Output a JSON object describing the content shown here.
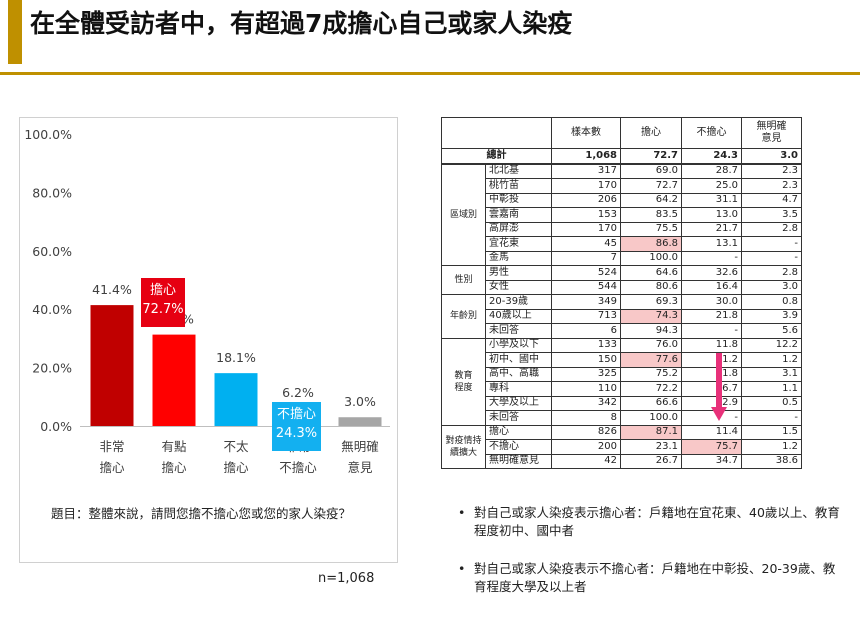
{
  "page": {
    "title": "在全體受訪者中，有超過7成擔心自己或家人染疫"
  },
  "chart_data": {
    "type": "bar",
    "categories": [
      "非常\n擔心",
      "有點\n擔心",
      "不太\n擔心",
      "非常\n不擔心",
      "無明確\n意見"
    ],
    "category_lines": [
      [
        "非常",
        "擔心"
      ],
      [
        "有點",
        "擔心"
      ],
      [
        "不太",
        "擔心"
      ],
      [
        "非常",
        "不擔心"
      ],
      [
        "無明確",
        "意見"
      ]
    ],
    "values": [
      41.4,
      31.3,
      18.1,
      6.2,
      3.0
    ],
    "value_labels": [
      "41.4%",
      "31.3%",
      "18.1%",
      "6.2%",
      "3.0%"
    ],
    "colors": [
      "#c00000",
      "#ff0000",
      "#00b0f0",
      "#0070c0",
      "#a6a6a6"
    ],
    "ylim": [
      0,
      100
    ],
    "yticks": [
      "0.0%",
      "20.0%",
      "40.0%",
      "60.0%",
      "80.0%",
      "100.0%"
    ],
    "ytick_values": [
      0,
      20,
      40,
      60,
      80,
      100
    ],
    "grid": false,
    "callouts": [
      {
        "label": "擔心",
        "value": "72.7%",
        "color": "#e60012"
      },
      {
        "label": "不擔心",
        "value": "24.3%",
        "color": "#13b0f0"
      }
    ],
    "question": "題目：整體來說，請問您擔不擔心您或您的家人染疫？",
    "n": "n=1,068"
  },
  "table": {
    "headers": [
      "樣本數",
      "擔心",
      "不擔心",
      "無明確\n意見"
    ],
    "header_lines": [
      [
        "樣本數"
      ],
      [
        "擔心"
      ],
      [
        "不擔心"
      ],
      [
        "無明確",
        "意見"
      ]
    ],
    "total": {
      "label": "總計",
      "values": [
        "1,068",
        "72.7",
        "24.3",
        "3.0"
      ]
    },
    "groups": [
      {
        "name": "區域別",
        "rows": [
          {
            "label": "北北基",
            "values": [
              "317",
              "69.0",
              "28.7",
              "2.3"
            ]
          },
          {
            "label": "桃竹苗",
            "values": [
              "170",
              "72.7",
              "25.0",
              "2.3"
            ]
          },
          {
            "label": "中彰投",
            "values": [
              "206",
              "64.2",
              "31.1",
              "4.7"
            ]
          },
          {
            "label": "雲嘉南",
            "values": [
              "153",
              "83.5",
              "13.0",
              "3.5"
            ]
          },
          {
            "label": "高屏澎",
            "values": [
              "170",
              "75.5",
              "21.7",
              "2.8"
            ]
          },
          {
            "label": "宜花東",
            "values": [
              "45",
              "86.8",
              "13.1",
              "-"
            ],
            "hl": [
              1
            ]
          },
          {
            "label": "金馬",
            "values": [
              "7",
              "100.0",
              "-",
              "-"
            ]
          }
        ]
      },
      {
        "name": "性別",
        "rows": [
          {
            "label": "男性",
            "values": [
              "524",
              "64.6",
              "32.6",
              "2.8"
            ]
          },
          {
            "label": "女性",
            "values": [
              "544",
              "80.6",
              "16.4",
              "3.0"
            ]
          }
        ]
      },
      {
        "name": "年齡別",
        "rows": [
          {
            "label": "20-39歲",
            "values": [
              "349",
              "69.3",
              "30.0",
              "0.8"
            ]
          },
          {
            "label": "40歲以上",
            "values": [
              "713",
              "74.3",
              "21.8",
              "3.9"
            ],
            "hl": [
              1
            ]
          },
          {
            "label": "未回答",
            "values": [
              "6",
              "94.3",
              "-",
              "5.6"
            ]
          }
        ]
      },
      {
        "name": "教育\n程度",
        "rows": [
          {
            "label": "小學及以下",
            "values": [
              "133",
              "76.0",
              "11.8",
              "12.2"
            ]
          },
          {
            "label": "初中、國中",
            "values": [
              "150",
              "77.6",
              "21.2",
              "1.2"
            ],
            "hl": [
              1
            ]
          },
          {
            "label": "高中、高職",
            "values": [
              "325",
              "75.2",
              "21.8",
              "3.1"
            ]
          },
          {
            "label": "專科",
            "values": [
              "110",
              "72.2",
              "26.7",
              "1.1"
            ]
          },
          {
            "label": "大學及以上",
            "values": [
              "342",
              "66.6",
              "32.9",
              "0.5"
            ]
          },
          {
            "label": "未回答",
            "values": [
              "8",
              "100.0",
              "-",
              "-"
            ]
          }
        ]
      },
      {
        "name": "對疫情持\n續擴大",
        "rows": [
          {
            "label": "擔心",
            "values": [
              "826",
              "87.1",
              "11.4",
              "1.5"
            ],
            "hl": [
              1
            ]
          },
          {
            "label": "不擔心",
            "values": [
              "200",
              "23.1",
              "75.7",
              "1.2"
            ],
            "hl": [
              2
            ]
          },
          {
            "label": "無明確意見",
            "values": [
              "42",
              "26.7",
              "34.7",
              "38.6"
            ]
          }
        ]
      }
    ]
  },
  "notes": [
    {
      "bullet": "•",
      "text": "對自己或家人染疫表示擔心者：戶籍地在宜花東、40歲以上、教育程度初中、國中者"
    },
    {
      "bullet": "•",
      "text": "對自己或家人染疫表示不擔心者：戶籍地在中彰投、20-39歲、教育程度大學及以上者"
    }
  ]
}
